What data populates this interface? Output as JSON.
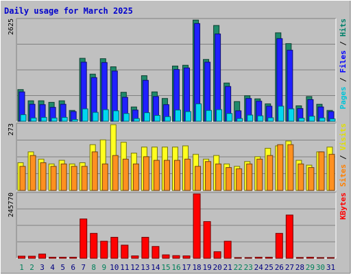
{
  "chart_data": {
    "type": "bar",
    "title": "Daily usage for March 2025",
    "categories": [
      "1",
      "2",
      "3",
      "4",
      "5",
      "6",
      "7",
      "8",
      "9",
      "10",
      "11",
      "12",
      "13",
      "14",
      "15",
      "16",
      "17",
      "18",
      "19",
      "20",
      "21",
      "22",
      "23",
      "24",
      "25",
      "26",
      "27",
      "28",
      "29",
      "30",
      "31"
    ],
    "weekend_days": [
      "1",
      "2",
      "8",
      "9",
      "15",
      "16",
      "22",
      "23",
      "29",
      "30"
    ],
    "panels": [
      {
        "id": "hits",
        "ymax_label": "2625",
        "ymax": 2625,
        "legend": [
          {
            "text": "Pages",
            "color": "#00c4d8"
          },
          {
            "text": " / ",
            "color": "#000000"
          },
          {
            "text": "Files",
            "color": "#0000ff"
          },
          {
            "text": " / ",
            "color": "#000000"
          },
          {
            "text": "Hits",
            "color": "#00806a"
          }
        ],
        "series": [
          {
            "name": "Hits",
            "color": "#1f8a6a",
            "values": [
              820,
              530,
              530,
              490,
              530,
              280,
              1630,
              1220,
              1620,
              1410,
              750,
              370,
              1180,
              760,
              590,
              1430,
              1450,
              2620,
              1600,
              2480,
              990,
              510,
              660,
              580,
              450,
              2290,
              2010,
              400,
              640,
              440,
              280
            ]
          },
          {
            "name": "Files",
            "color": "#2020ff",
            "values": [
              760,
              440,
              430,
              360,
              440,
              250,
              1530,
              1130,
              1520,
              1300,
              620,
              290,
              1060,
              640,
              430,
              1340,
              1380,
              2530,
              1530,
              2260,
              900,
              270,
              590,
              520,
              390,
              2140,
              1840,
              330,
              560,
              370,
              250
            ]
          },
          {
            "name": "Pages",
            "color": "#00d8f0",
            "values": [
              170,
              85,
              100,
              85,
              100,
              45,
              320,
              230,
              300,
              270,
              200,
              70,
              220,
              150,
              120,
              290,
              250,
              450,
              280,
              300,
              200,
              70,
              160,
              140,
              90,
              390,
              320,
              80,
              130,
              85,
              60
            ]
          }
        ]
      },
      {
        "id": "visits",
        "ymax_label": "273",
        "ymax": 273,
        "legend": [
          {
            "text": "Sites",
            "color": "#ff8000"
          },
          {
            "text": " / ",
            "color": "#000000"
          },
          {
            "text": "Visits",
            "color": "#e0e000"
          }
        ],
        "series": [
          {
            "name": "Visits",
            "color": "#ffff20",
            "values": [
              115,
              160,
              130,
              110,
              125,
              110,
              115,
              190,
              210,
              273,
              200,
              155,
              180,
              180,
              180,
              180,
              185,
              150,
              130,
              145,
              110,
              100,
              120,
              140,
              175,
              185,
              205,
              125,
              105,
              160,
              180
            ]
          },
          {
            "name": "Sites",
            "color": "#ff9020",
            "values": [
              100,
              145,
              115,
              100,
              110,
              100,
              100,
              160,
              110,
              145,
              130,
              110,
              140,
              125,
              125,
              125,
              130,
              100,
              120,
              110,
              95,
              90,
              110,
              130,
              145,
              190,
              190,
              110,
              95,
              160,
              150
            ]
          }
        ]
      },
      {
        "id": "kbytes",
        "ymax_label": "245770",
        "ymax": 245770,
        "legend": [
          {
            "text": "KBytes",
            "color": "#ff0000"
          }
        ],
        "series": [
          {
            "name": "KBytes",
            "color": "#ff0000",
            "values": [
              8000,
              7800,
              16000,
              4000,
              4000,
              4000,
              150000,
              95000,
              65000,
              80000,
              50000,
              9000,
              80000,
              45000,
              13000,
              10000,
              9000,
              245770,
              140000,
              25000,
              65000,
              2000,
              2000,
              4000,
              4000,
              95000,
              165000,
              3000,
              4000,
              2000,
              2000
            ]
          }
        ]
      }
    ]
  }
}
